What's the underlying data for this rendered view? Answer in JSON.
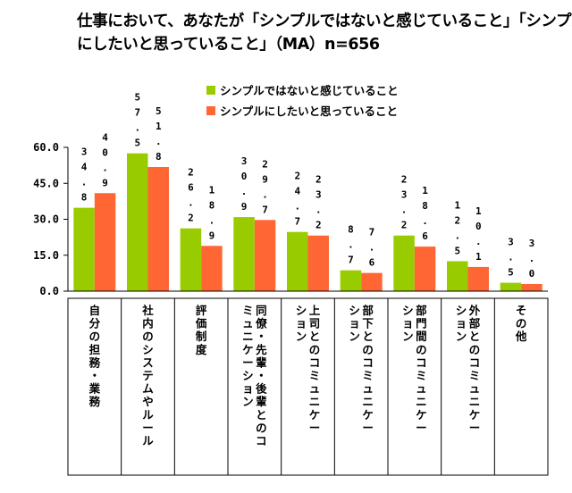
{
  "title_lines": [
    "仕事において、あなたが「シンプルではないと感じていること」「シンプル",
    "にしたいと思っていること」（MA）n=656"
  ],
  "colors": {
    "green": "#99cc00",
    "orange": "#ff6633"
  },
  "chart_data": {
    "type": "bar",
    "title": "仕事において、あなたが「シンプルではないと感じていること」「シンプルにしたいと思っていること」（MA）n=656",
    "categories": [
      [
        "自分の担務・業務"
      ],
      [
        "社内のシステムやルール"
      ],
      [
        "評価制度"
      ],
      [
        "同僚・先輩・後輩とのコ",
        "ミュニケーション"
      ],
      [
        "上司とのコミュニケー",
        "ション"
      ],
      [
        "部下とのコミュニケー",
        "ション"
      ],
      [
        "部門間のコミュニケー",
        "ション"
      ],
      [
        "外部とのコミュニケー",
        "ション"
      ],
      [
        "その他"
      ]
    ],
    "series": [
      {
        "name": "シンプルではないと感じていること",
        "color": "#99cc00",
        "values": [
          34.8,
          57.5,
          26.2,
          30.9,
          24.7,
          8.7,
          23.2,
          12.5,
          3.5
        ]
      },
      {
        "name": "シンプルにしたいと思っていること",
        "color": "#ff6633",
        "values": [
          40.9,
          51.8,
          18.9,
          29.7,
          23.2,
          7.6,
          18.6,
          10.1,
          3.0
        ]
      }
    ],
    "value_labels": [
      [
        "34.8",
        "57.5",
        "26.2",
        "30.9",
        "24.7",
        "8.7",
        "23.2",
        "12.5",
        "3.5"
      ],
      [
        "40.9",
        "51.8",
        "18.9",
        "29.7",
        "23.2",
        "7.6",
        "18.6",
        "10.1",
        "3.0"
      ]
    ],
    "yticks": [
      "0.0",
      "15.0",
      "30.0",
      "45.0",
      "60.0"
    ],
    "ylim": [
      0,
      60
    ],
    "legend": "top-center",
    "grid": false
  }
}
